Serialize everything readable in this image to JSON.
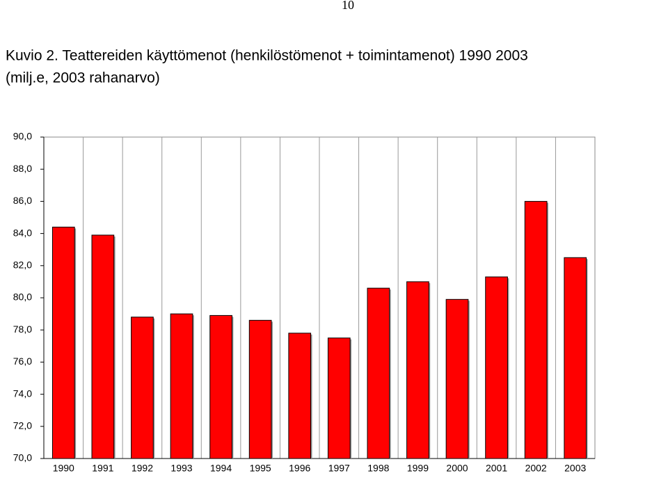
{
  "page_number": "10",
  "chart_data": {
    "type": "bar",
    "title": [
      "Kuvio 2. Teattereiden käyttömenot (henkilöstömenot + toimintamenot) 1990 2003",
      "(milj.e, 2003 rahanarvo)"
    ],
    "categories": [
      "1990",
      "1991",
      "1992",
      "1993",
      "1994",
      "1995",
      "1996",
      "1997",
      "1998",
      "1999",
      "2000",
      "2001",
      "2002",
      "2003"
    ],
    "values": [
      84.4,
      83.9,
      78.8,
      79.0,
      78.9,
      78.6,
      77.8,
      77.5,
      80.6,
      81.0,
      79.9,
      81.3,
      86.0,
      82.5
    ],
    "color": "#ff0000",
    "ylim": [
      70,
      90
    ],
    "yticks": [
      {
        "value": 70,
        "label": "70,0"
      },
      {
        "value": 72,
        "label": "72,0"
      },
      {
        "value": 74,
        "label": "74,0"
      },
      {
        "value": 76,
        "label": "76,0"
      },
      {
        "value": 78,
        "label": "78,0"
      },
      {
        "value": 80,
        "label": "80,0"
      },
      {
        "value": 82,
        "label": "82,0"
      },
      {
        "value": 84,
        "label": "84,0"
      },
      {
        "value": 86,
        "label": "86,0"
      },
      {
        "value": 88,
        "label": "88,0"
      },
      {
        "value": 90,
        "label": "90,0"
      }
    ],
    "grid": "vertical"
  }
}
